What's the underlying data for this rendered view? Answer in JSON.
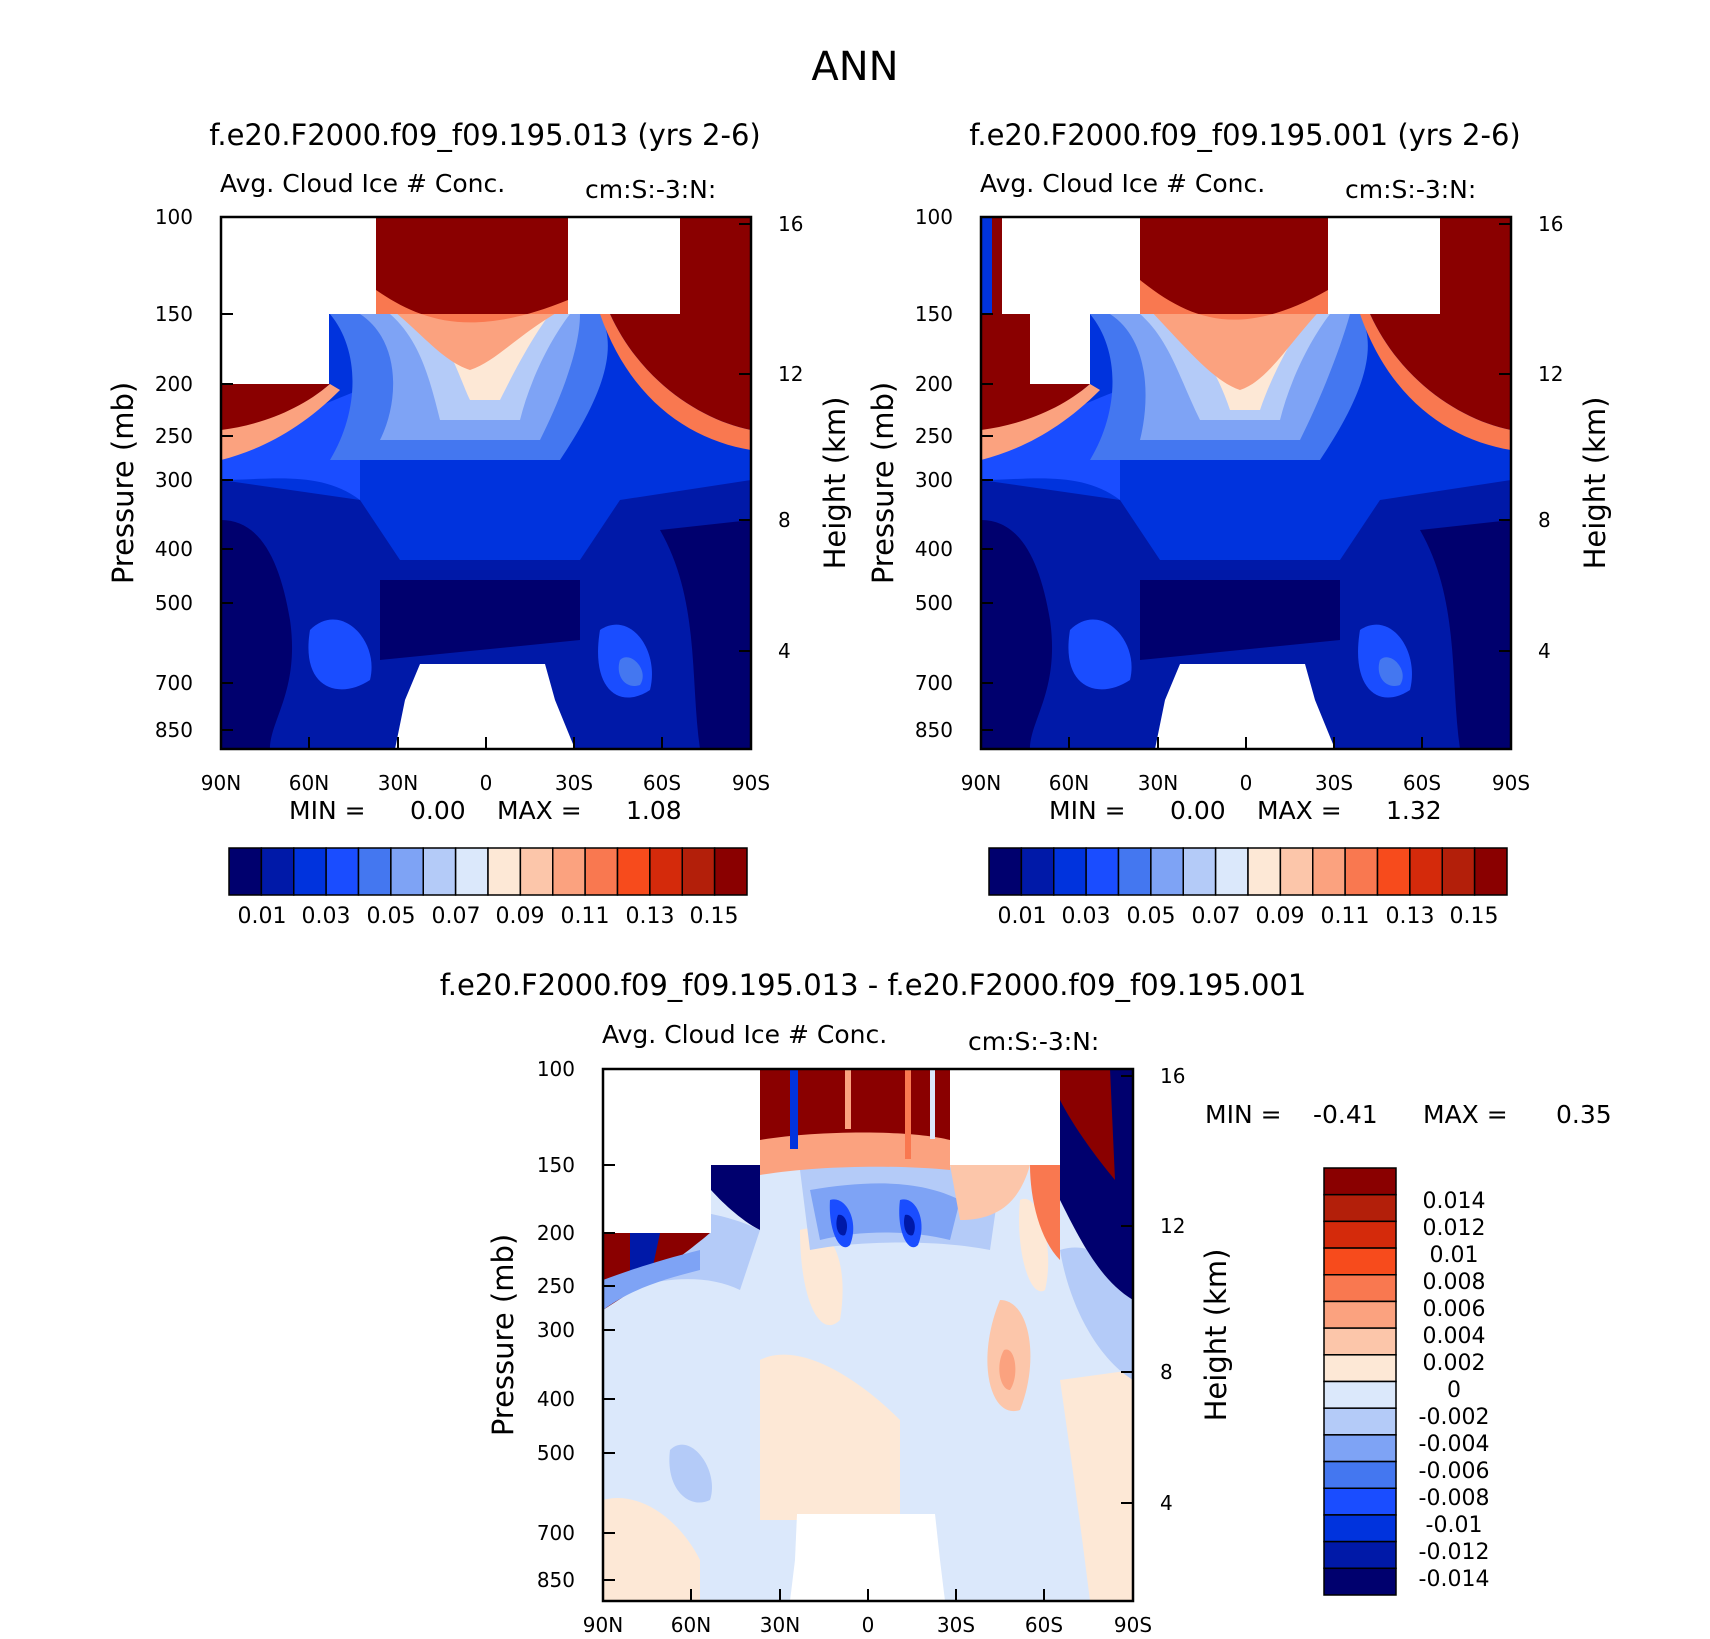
{
  "page_title": "ANN",
  "colors": {
    "abs_scale": [
      "#00006e",
      "#0019a8",
      "#0033dd",
      "#1a4dff",
      "#4477f0",
      "#7ea3f5",
      "#b4cbf8",
      "#dbe8fb",
      "#fde8d6",
      "#fcc6aa",
      "#fba27f",
      "#f97850",
      "#f74b1c",
      "#d42a0b",
      "#b31f0a",
      "#8a0000"
    ],
    "diff_scale": [
      "#00006e",
      "#0019a8",
      "#0033dd",
      "#1a4dff",
      "#4477f0",
      "#7ea3f5",
      "#b4cbf8",
      "#dbe8fb",
      "#fde8d6",
      "#fcc6aa",
      "#fba27f",
      "#f97850",
      "#f74b1c",
      "#d42a0b",
      "#b31f0a",
      "#8a0000"
    ]
  },
  "chart_data": [
    {
      "type": "heatmap",
      "title": "f.e20.F2000.f09_f09.195.013 (yrs 2-6)",
      "subtitle_left": "Avg. Cloud Ice # Conc.",
      "subtitle_right": "cm:S:-3:N:",
      "ylabel": "Pressure (mb)",
      "ylabel_right": "Height (km)",
      "x_ticks": [
        "90N",
        "60N",
        "30N",
        "0",
        "30S",
        "60S",
        "90S"
      ],
      "y_ticks": [
        "100",
        "150",
        "200",
        "250",
        "300",
        "400",
        "500",
        "700",
        "850"
      ],
      "y_right_ticks": [
        "16",
        "12",
        "8",
        "4"
      ],
      "min_label": "MIN =",
      "min_value": "0.00",
      "max_label": "MAX =",
      "max_value": "1.08",
      "colorbar_labels": [
        "0.01",
        "0.03",
        "0.05",
        "0.07",
        "0.09",
        "0.11",
        "0.13",
        "0.15"
      ]
    },
    {
      "type": "heatmap",
      "title": "f.e20.F2000.f09_f09.195.001 (yrs 2-6)",
      "subtitle_left": "Avg. Cloud Ice # Conc.",
      "subtitle_right": "cm:S:-3:N:",
      "ylabel": "Pressure (mb)",
      "ylabel_right": "Height (km)",
      "x_ticks": [
        "90N",
        "60N",
        "30N",
        "0",
        "30S",
        "60S",
        "90S"
      ],
      "y_ticks": [
        "100",
        "150",
        "200",
        "250",
        "300",
        "400",
        "500",
        "700",
        "850"
      ],
      "y_right_ticks": [
        "16",
        "12",
        "8",
        "4"
      ],
      "min_label": "MIN =",
      "min_value": "0.00",
      "max_label": "MAX =",
      "max_value": "1.32",
      "colorbar_labels": [
        "0.01",
        "0.03",
        "0.05",
        "0.07",
        "0.09",
        "0.11",
        "0.13",
        "0.15"
      ]
    },
    {
      "type": "heatmap",
      "title": "f.e20.F2000.f09_f09.195.013 - f.e20.F2000.f09_f09.195.001",
      "subtitle_left": "Avg. Cloud Ice # Conc.",
      "subtitle_right": "cm:S:-3:N:",
      "ylabel": "Pressure (mb)",
      "ylabel_right": "Height (km)",
      "x_ticks": [
        "90N",
        "60N",
        "30N",
        "0",
        "30S",
        "60S",
        "90S"
      ],
      "y_ticks": [
        "100",
        "150",
        "200",
        "250",
        "300",
        "400",
        "500",
        "700",
        "850"
      ],
      "y_right_ticks": [
        "16",
        "12",
        "8",
        "4"
      ],
      "min_label": "MIN =",
      "min_value": "-0.41",
      "max_label": "MAX =",
      "max_value": "0.35",
      "colorbar_labels": [
        "0.014",
        "0.012",
        "0.01",
        "0.008",
        "0.006",
        "0.004",
        "0.002",
        "0",
        "-0.002",
        "-0.004",
        "-0.006",
        "-0.008",
        "-0.01",
        "-0.012",
        "-0.014"
      ]
    }
  ]
}
